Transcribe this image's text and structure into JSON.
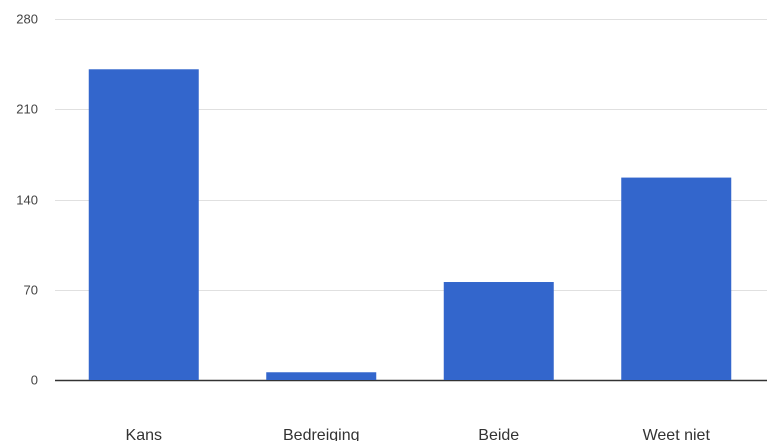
{
  "chart_data": {
    "type": "bar",
    "categories": [
      "Kans",
      "Bedreiging",
      "Beide",
      "Weet niet"
    ],
    "values": [
      241,
      6,
      76,
      157
    ],
    "ylim": [
      0,
      280
    ],
    "yticks": [
      0,
      70,
      140,
      210,
      280
    ],
    "ytick_labels": [
      "0",
      "70",
      "140",
      "210",
      "280"
    ],
    "grid": true,
    "legend": "none",
    "colors": {
      "bar": "#3366cc",
      "grid": "#e0e0e0",
      "baseline": "#333333"
    }
  }
}
